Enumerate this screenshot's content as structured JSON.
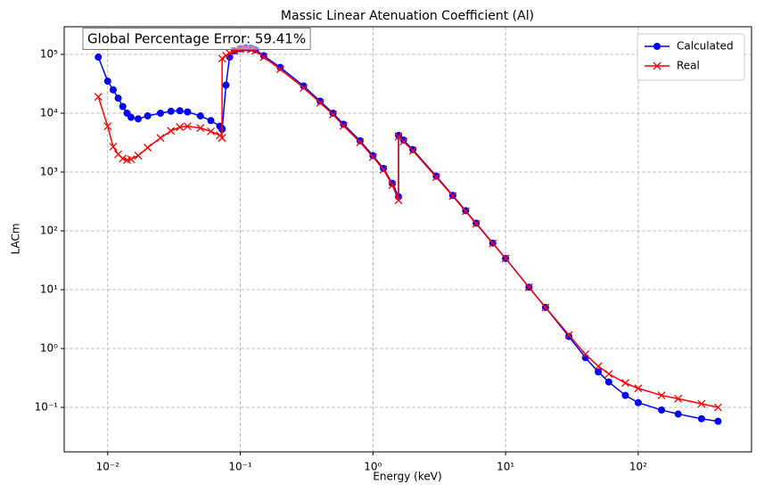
{
  "chart_data": {
    "type": "line",
    "title": "Massic Linear Atenuation Coefficient (Al)",
    "xlabel": "Energy (keV)",
    "ylabel": "LACm",
    "annotation": "Global Percentage Error: 59.41%",
    "xscale": "log",
    "yscale": "log",
    "grid": true,
    "legend": "upper right",
    "xlim": [
      0.0047,
      715
    ],
    "ylim": [
      0.0175,
      295000
    ],
    "xticks": [
      {
        "value": 0.01,
        "label": "10⁻²"
      },
      {
        "value": 0.1,
        "label": "10⁻¹"
      },
      {
        "value": 1,
        "label": "10⁰"
      },
      {
        "value": 10,
        "label": "10¹"
      },
      {
        "value": 100,
        "label": "10²"
      }
    ],
    "yticks": [
      {
        "value": 0.1,
        "label": "10⁻¹"
      },
      {
        "value": 1,
        "label": "10⁰"
      },
      {
        "value": 10,
        "label": "10¹"
      },
      {
        "value": 100,
        "label": "10²"
      },
      {
        "value": 1000,
        "label": "10³"
      },
      {
        "value": 10000,
        "label": "10⁴"
      },
      {
        "value": 100000,
        "label": "10⁵"
      }
    ],
    "x": [
      0.0085,
      0.01,
      0.011,
      0.012,
      0.013,
      0.014,
      0.015,
      0.017,
      0.02,
      0.025,
      0.03,
      0.035,
      0.04,
      0.05,
      0.06,
      0.07,
      0.0728,
      0.0729,
      0.078,
      0.083,
      0.09,
      0.1,
      0.11,
      0.12,
      0.13,
      0.15,
      0.2,
      0.3,
      0.4,
      0.5,
      0.6,
      0.8,
      1.0,
      1.2,
      1.4,
      1.5596,
      1.5597,
      1.7,
      2,
      3,
      4,
      5,
      6,
      8,
      10,
      15,
      20,
      30,
      40,
      50,
      60,
      80,
      100,
      150,
      200,
      300,
      400
    ],
    "series": [
      {
        "name": "Calculated",
        "color": "#0000ff",
        "marker": "o",
        "values": [
          90000,
          35000,
          25000,
          18000,
          13000,
          10000,
          8500,
          8000,
          9000,
          10000,
          10800,
          11000,
          10500,
          9000,
          7500,
          6000,
          5500,
          5300,
          30000,
          90000,
          115000,
          125000,
          130000,
          128000,
          120000,
          95000,
          60000,
          29000,
          16000,
          10000,
          6500,
          3400,
          1900,
          1150,
          640,
          380,
          4200,
          3500,
          2400,
          850,
          400,
          220,
          135,
          62,
          34,
          11,
          5,
          1.6,
          0.7,
          0.4,
          0.27,
          0.16,
          0.12,
          0.09,
          0.077,
          0.064,
          0.058
        ]
      },
      {
        "name": "Real",
        "color": "#ff0000",
        "marker": "x",
        "values": [
          19000,
          6000,
          2700,
          2000,
          1700,
          1600,
          1650,
          1900,
          2600,
          3800,
          5000,
          5800,
          6000,
          5600,
          4900,
          4200,
          3800,
          85000,
          95000,
          105000,
          115000,
          122000,
          125000,
          122000,
          115000,
          90000,
          56000,
          27000,
          15000,
          9500,
          6100,
          3200,
          1800,
          1100,
          600,
          330,
          4000,
          3300,
          2300,
          820,
          390,
          215,
          132,
          61,
          34,
          11,
          5,
          1.7,
          0.8,
          0.5,
          0.37,
          0.26,
          0.21,
          0.16,
          0.14,
          0.115,
          0.1
        ]
      }
    ]
  }
}
